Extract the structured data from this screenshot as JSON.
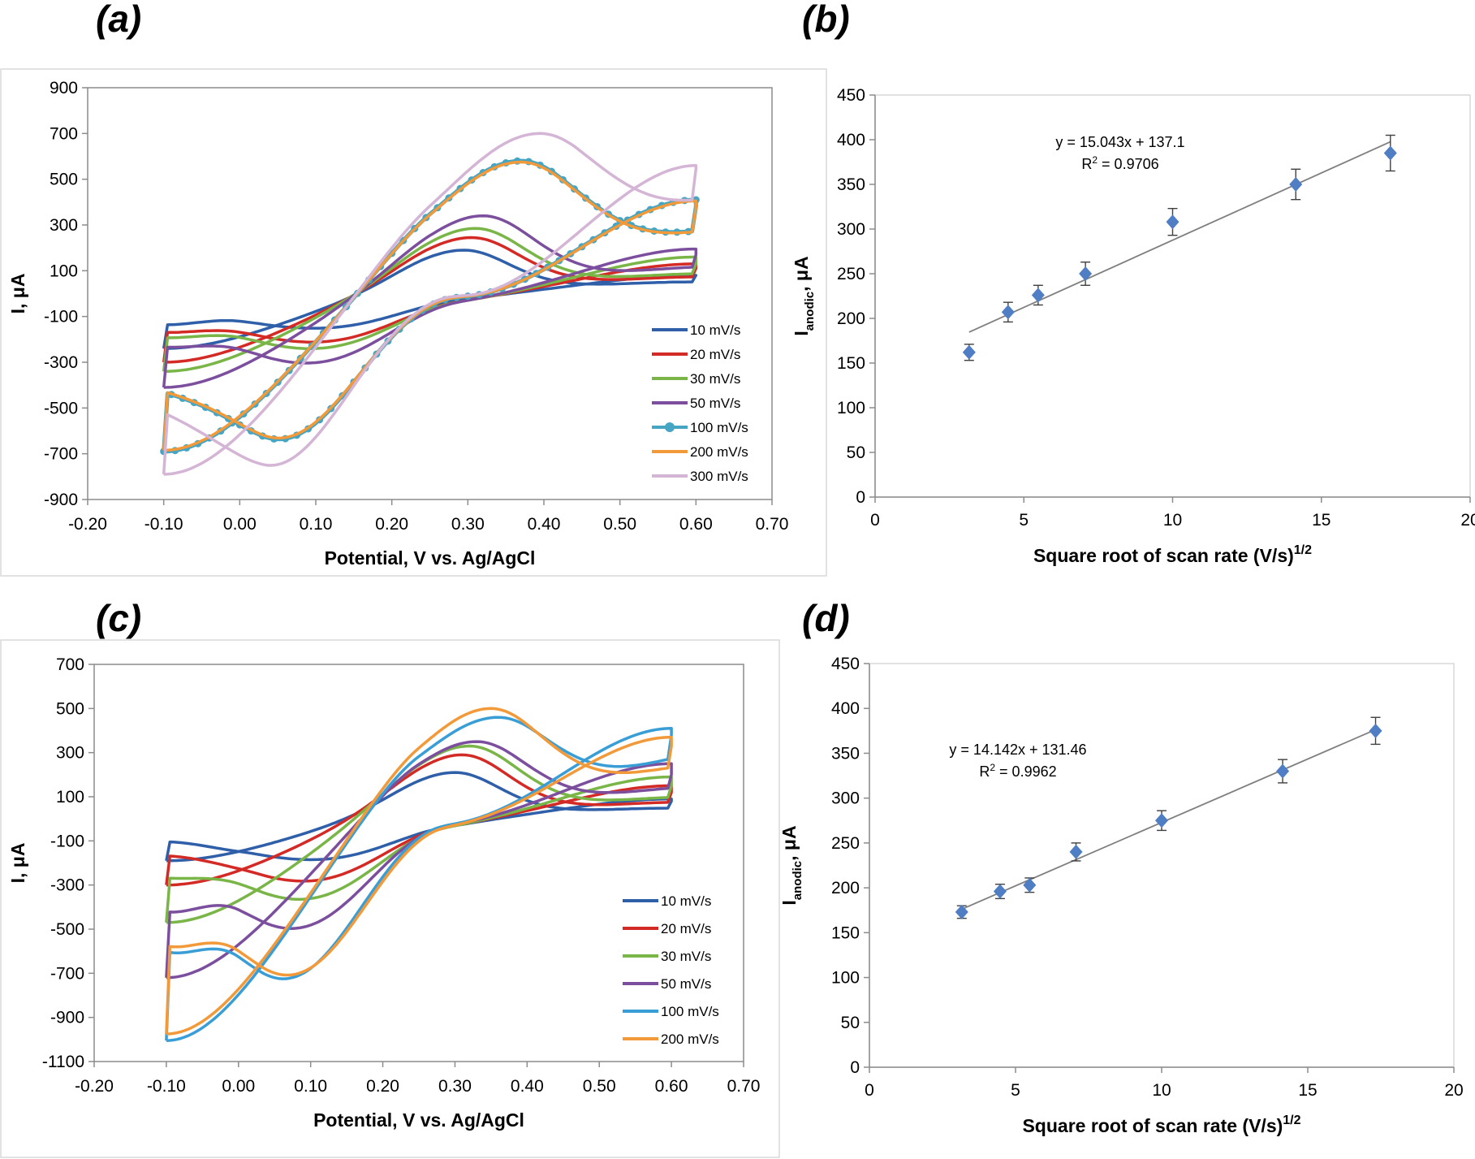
{
  "panels": {
    "a": {
      "label": "(a)"
    },
    "b": {
      "label": "(b)"
    },
    "c": {
      "label": "(c)"
    },
    "d": {
      "label": "(d)"
    }
  },
  "chart_data": [
    {
      "id": "a",
      "type": "line",
      "title": "",
      "xlabel": "Potential, V vs. Ag/AgCl",
      "ylabel": "I, μA",
      "xlim": [
        -0.2,
        0.7
      ],
      "ylim": [
        -900,
        900
      ],
      "xticks": [
        -0.2,
        -0.1,
        0.0,
        0.1,
        0.2,
        0.3,
        0.4,
        0.5,
        0.6,
        0.7
      ],
      "xtick_labels": [
        "-0.20",
        "-0.10",
        "0.00",
        "0.10",
        "0.20",
        "0.30",
        "0.40",
        "0.50",
        "0.60",
        "0.70"
      ],
      "yticks": [
        -900,
        -700,
        -500,
        -300,
        -100,
        100,
        300,
        500,
        700,
        900
      ],
      "ytick_labels": [
        "-900",
        "-700",
        "-500",
        "-300",
        "-100",
        "100",
        "300",
        "500",
        "700",
        "900"
      ],
      "grid": false,
      "legend_position": "lower-right",
      "series": [
        {
          "name": "10 mV/s",
          "color": "#2e5fa8",
          "ipa": 190,
          "epa": 0.295,
          "ipc": -185,
          "epc": 0.155,
          "start": -240,
          "end_fwd": 80,
          "end_rev": 80,
          "baseline": 20
        },
        {
          "name": "20 mV/s",
          "color": "#d42a26",
          "ipa": 245,
          "epa": 0.305,
          "ipc": -255,
          "epc": 0.15,
          "start": -300,
          "end_fwd": 110,
          "end_rev": 130,
          "baseline": 30
        },
        {
          "name": "30 mV/s",
          "color": "#79b547",
          "ipa": 285,
          "epa": 0.31,
          "ipc": -285,
          "epc": 0.145,
          "start": -340,
          "end_fwd": 130,
          "end_rev": 160,
          "baseline": 35
        },
        {
          "name": "50 mV/s",
          "color": "#7c4f9e",
          "ipa": 340,
          "epa": 0.32,
          "ipc": -350,
          "epc": 0.135,
          "start": -410,
          "end_fwd": 170,
          "end_rev": 195,
          "baseline": 40
        },
        {
          "name": "100 mV/s",
          "color": "#46a5c2",
          "ipa": 580,
          "epa": 0.37,
          "ipc": -650,
          "epc": 0.07,
          "start": -690,
          "end_fwd": 380,
          "end_rev": 410,
          "baseline": 60,
          "markers": true
        },
        {
          "name": "200 mV/s",
          "color": "#f29a3a",
          "ipa": 575,
          "epa": 0.37,
          "ipc": -645,
          "epc": 0.07,
          "start": -685,
          "end_fwd": 375,
          "end_rev": 405,
          "baseline": 60
        },
        {
          "name": "300 mV/s",
          "color": "#d4b5d5",
          "ipa": 700,
          "epa": 0.395,
          "ipc": -755,
          "epc": 0.05,
          "start": -790,
          "end_fwd": 545,
          "end_rev": 560,
          "baseline": 70
        }
      ]
    },
    {
      "id": "b",
      "type": "scatter",
      "title": "",
      "xlabel": "Square root of scan rate (V/s)",
      "xlabel_sup": "1/2",
      "ylabel": "I",
      "ylabel_sub": "anodic",
      "ylabel_suffix": ", μA",
      "xlim": [
        0,
        20
      ],
      "ylim": [
        0,
        450
      ],
      "xticks": [
        0,
        5,
        10,
        15,
        20
      ],
      "yticks": [
        0,
        50,
        100,
        150,
        200,
        250,
        300,
        350,
        400,
        450
      ],
      "grid": false,
      "points": [
        {
          "x": 3.16,
          "y": 162,
          "err": 9
        },
        {
          "x": 4.47,
          "y": 207,
          "err": 11
        },
        {
          "x": 5.48,
          "y": 226,
          "err": 11
        },
        {
          "x": 7.07,
          "y": 250,
          "err": 13
        },
        {
          "x": 10.0,
          "y": 308,
          "err": 15
        },
        {
          "x": 14.14,
          "y": 350,
          "err": 17
        },
        {
          "x": 17.32,
          "y": 385,
          "err": 20
        }
      ],
      "trendline": {
        "slope": 15.043,
        "intercept": 137.1,
        "x_range": [
          3.16,
          17.32
        ]
      },
      "equation": "y = 15.043x + 137.1",
      "r2_label": "R",
      "r2_value": " = 0.9706",
      "marker_color": "#4f7ec4"
    },
    {
      "id": "c",
      "type": "line",
      "title": "",
      "xlabel": "Potential, V vs. Ag/AgCl",
      "ylabel": "I, μA",
      "xlim": [
        -0.2,
        0.7
      ],
      "ylim": [
        -1100,
        700
      ],
      "xticks": [
        -0.2,
        -0.1,
        0.0,
        0.1,
        0.2,
        0.3,
        0.4,
        0.5,
        0.6,
        0.7
      ],
      "xtick_labels": [
        "-0.20",
        "-0.10",
        "0.00",
        "0.10",
        "0.20",
        "0.30",
        "0.40",
        "0.50",
        "0.60",
        "0.70"
      ],
      "yticks": [
        -1100,
        -900,
        -700,
        -500,
        -300,
        -100,
        100,
        300,
        500,
        700
      ],
      "ytick_labels": [
        "-1100",
        "-900",
        "-700",
        "-500",
        "-300",
        "-100",
        "100",
        "300",
        "500",
        "700"
      ],
      "grid": false,
      "legend_position": "lower-right",
      "series": [
        {
          "name": "10 mV/s",
          "color": "#2e5fa8",
          "ipa": 210,
          "epa": 0.3,
          "ipc": -230,
          "epc": 0.16,
          "start": -190,
          "end_fwd": 80,
          "end_rev": 90,
          "baseline": 20
        },
        {
          "name": "20 mV/s",
          "color": "#d42a26",
          "ipa": 290,
          "epa": 0.31,
          "ipc": -330,
          "epc": 0.14,
          "start": -300,
          "end_fwd": 120,
          "end_rev": 150,
          "baseline": 25
        },
        {
          "name": "30 mV/s",
          "color": "#79b547",
          "ipa": 330,
          "epa": 0.32,
          "ipc": -415,
          "epc": 0.13,
          "start": -470,
          "end_fwd": 150,
          "end_rev": 190,
          "baseline": 30
        },
        {
          "name": "50 mV/s",
          "color": "#7c4f9e",
          "ipa": 350,
          "epa": 0.33,
          "ipc": -540,
          "epc": 0.11,
          "start": -720,
          "end_fwd": 200,
          "end_rev": 250,
          "baseline": 35
        },
        {
          "name": "100 mV/s",
          "color": "#3a9ed6",
          "ipa": 460,
          "epa": 0.36,
          "ipc": -760,
          "epc": 0.09,
          "start": -1005,
          "end_fwd": 380,
          "end_rev": 410,
          "baseline": 40
        },
        {
          "name": "200 mV/s",
          "color": "#f29a3a",
          "ipa": 500,
          "epa": 0.35,
          "ipc": -755,
          "epc": 0.1,
          "start": -975,
          "end_fwd": 330,
          "end_rev": 370,
          "baseline": 45
        }
      ]
    },
    {
      "id": "d",
      "type": "scatter",
      "title": "",
      "xlabel": "Square root of scan rate (V/s)",
      "xlabel_sup": "1/2",
      "ylabel": "I",
      "ylabel_sub": "anodic",
      "ylabel_suffix": ", μA",
      "xlim": [
        0,
        20
      ],
      "ylim": [
        0,
        450
      ],
      "xticks": [
        0,
        5,
        10,
        15,
        20
      ],
      "yticks": [
        0,
        50,
        100,
        150,
        200,
        250,
        300,
        350,
        400,
        450
      ],
      "grid": false,
      "points": [
        {
          "x": 3.16,
          "y": 173,
          "err": 7
        },
        {
          "x": 4.47,
          "y": 196,
          "err": 8
        },
        {
          "x": 5.48,
          "y": 203,
          "err": 8
        },
        {
          "x": 7.07,
          "y": 240,
          "err": 10
        },
        {
          "x": 10.0,
          "y": 275,
          "err": 11
        },
        {
          "x": 14.14,
          "y": 330,
          "err": 13
        },
        {
          "x": 17.32,
          "y": 375,
          "err": 15
        }
      ],
      "trendline": {
        "slope": 14.142,
        "intercept": 131.46,
        "x_range": [
          3.16,
          17.32
        ]
      },
      "equation": "y = 14.142x + 131.46",
      "r2_label": "R",
      "r2_value": " = 0.9962",
      "marker_color": "#4f7ec4"
    }
  ]
}
